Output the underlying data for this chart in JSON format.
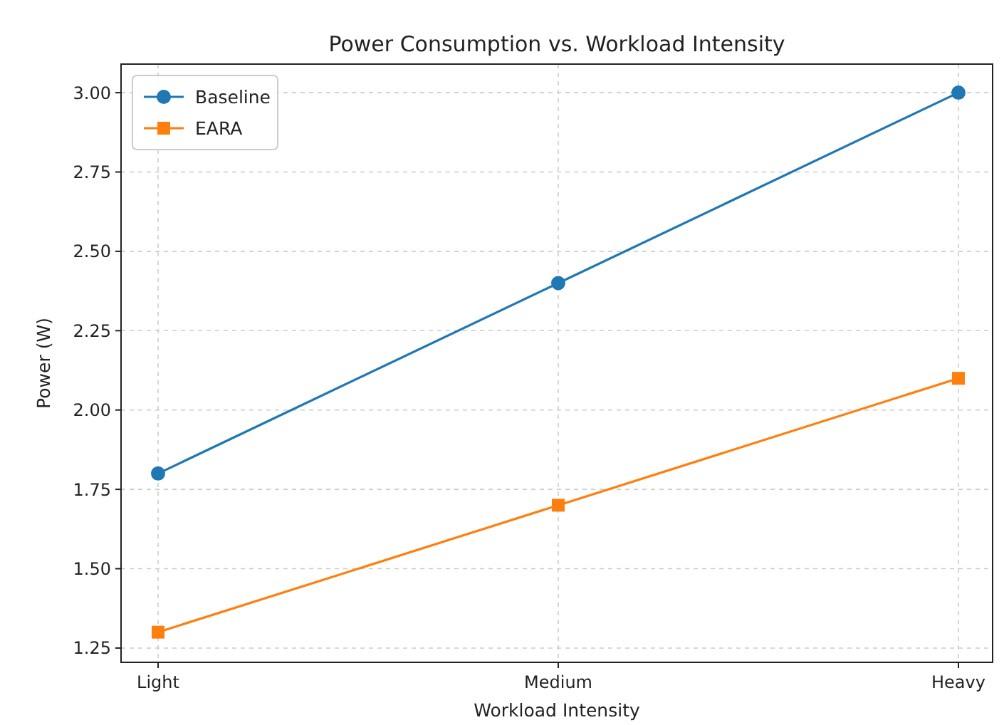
{
  "chart_data": {
    "type": "line",
    "title": "Power Consumption vs. Workload Intensity",
    "xlabel": "Workload Intensity",
    "ylabel": "Power (W)",
    "categories": [
      "Light",
      "Medium",
      "Heavy"
    ],
    "series": [
      {
        "name": "Baseline",
        "color": "#1f77b4",
        "values": [
          1.8,
          2.4,
          3.0
        ],
        "marker": "circle"
      },
      {
        "name": "EARA",
        "color": "#ff7f0e",
        "values": [
          1.3,
          1.7,
          2.1
        ],
        "marker": "square"
      }
    ],
    "ylim": [
      1.205,
      3.09
    ],
    "yticks": [
      {
        "value": 1.25,
        "label": "1.25"
      },
      {
        "value": 1.5,
        "label": "1.50"
      },
      {
        "value": 1.75,
        "label": "1.75"
      },
      {
        "value": 2.0,
        "label": "2.00"
      },
      {
        "value": 2.25,
        "label": "2.25"
      },
      {
        "value": 2.5,
        "label": "2.50"
      },
      {
        "value": 2.75,
        "label": "2.75"
      },
      {
        "value": 3.0,
        "label": "3.00"
      }
    ],
    "grid": true,
    "legend": "top left",
    "line_style": "solid"
  }
}
